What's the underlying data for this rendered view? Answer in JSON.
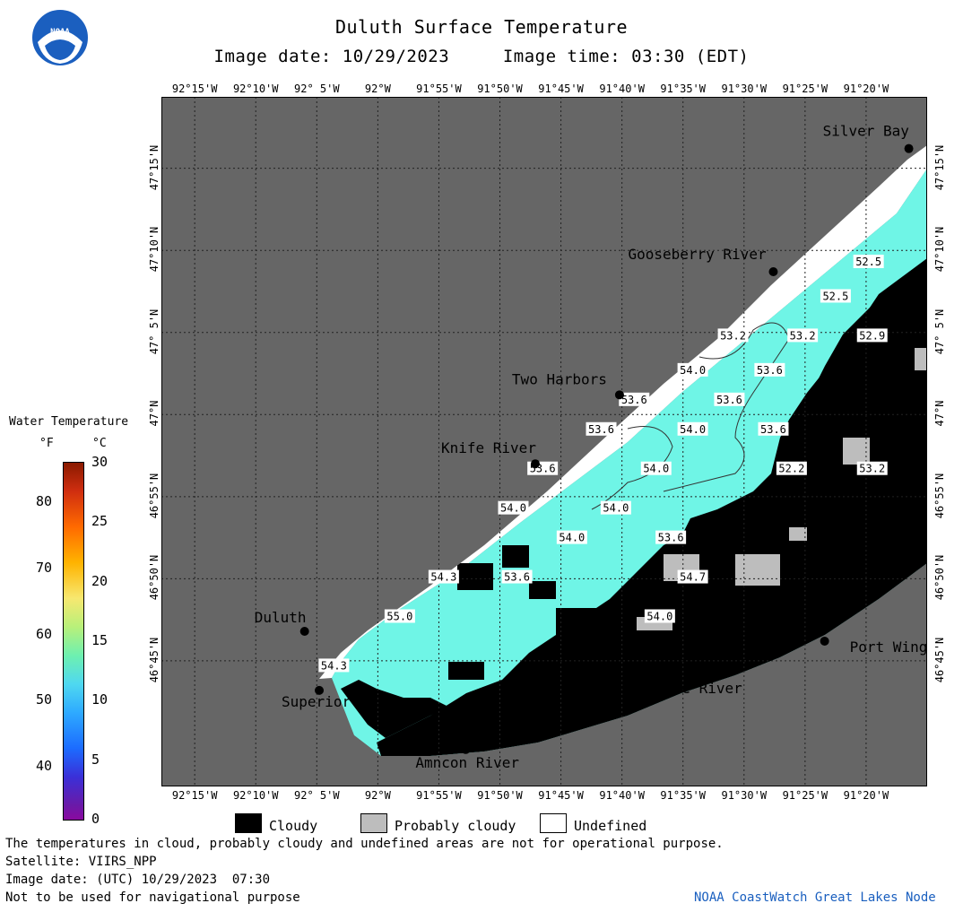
{
  "header": {
    "title": "Duluth Surface Temperature",
    "subtitle": "Image date: 10/29/2023     Image time: 03:30 (EDT)"
  },
  "logo": {
    "text": "NOAA"
  },
  "map": {
    "lon_labels": [
      "92°15'W",
      "92°10'W",
      "92° 5'W",
      "92°W",
      "91°55'W",
      "91°50'W",
      "91°45'W",
      "91°40'W",
      "91°35'W",
      "91°30'W",
      "91°25'W",
      "91°20'W"
    ],
    "lat_labels": [
      "47°15'N",
      "47°10'N",
      "47° 5'N",
      "47°N",
      "46°55'N",
      "46°50'N",
      "46°45'N"
    ],
    "places": [
      {
        "name": "Silver Bay",
        "lon": -91.275,
        "lat": 47.27
      },
      {
        "name": "Gooseberry River",
        "lon": -91.46,
        "lat": 47.145
      },
      {
        "name": "Two Harbors",
        "lon": -91.67,
        "lat": 47.02
      },
      {
        "name": "Knife River",
        "lon": -91.785,
        "lat": 46.95
      },
      {
        "name": "Duluth",
        "lon": -92.1,
        "lat": 46.78
      },
      {
        "name": "Superior",
        "lon": -92.08,
        "lat": 46.72
      },
      {
        "name": "Amncon River",
        "lon": -91.88,
        "lat": 46.66
      },
      {
        "name": "Brule River",
        "lon": -91.62,
        "lat": 46.74
      },
      {
        "name": "Port Wing",
        "lon": -91.39,
        "lat": 46.77
      }
    ],
    "temperature_labels": [
      {
        "value": "52.5",
        "lon": -91.33,
        "lat": 47.155
      },
      {
        "value": "52.5",
        "lon": -91.375,
        "lat": 47.12
      },
      {
        "value": "52.9",
        "lon": -91.325,
        "lat": 47.08
      },
      {
        "value": "53.2",
        "lon": -91.515,
        "lat": 47.08
      },
      {
        "value": "53.2",
        "lon": -91.42,
        "lat": 47.08
      },
      {
        "value": "54.0",
        "lon": -91.57,
        "lat": 47.045
      },
      {
        "value": "53.6",
        "lon": -91.465,
        "lat": 47.045
      },
      {
        "value": "53.6",
        "lon": -91.65,
        "lat": 47.015
      },
      {
        "value": "53.6",
        "lon": -91.52,
        "lat": 47.015
      },
      {
        "value": "53.6",
        "lon": -91.695,
        "lat": 46.985
      },
      {
        "value": "54.0",
        "lon": -91.57,
        "lat": 46.985
      },
      {
        "value": "53.6",
        "lon": -91.46,
        "lat": 46.985
      },
      {
        "value": "53.6",
        "lon": -91.775,
        "lat": 46.945
      },
      {
        "value": "54.0",
        "lon": -91.62,
        "lat": 46.945
      },
      {
        "value": "52.2",
        "lon": -91.435,
        "lat": 46.945
      },
      {
        "value": "53.2",
        "lon": -91.325,
        "lat": 46.945
      },
      {
        "value": "54.0",
        "lon": -91.815,
        "lat": 46.905
      },
      {
        "value": "54.0",
        "lon": -91.675,
        "lat": 46.905
      },
      {
        "value": "54.0",
        "lon": -91.735,
        "lat": 46.875
      },
      {
        "value": "53.6",
        "lon": -91.6,
        "lat": 46.875
      },
      {
        "value": "54.3",
        "lon": -91.91,
        "lat": 46.835
      },
      {
        "value": "53.6",
        "lon": -91.81,
        "lat": 46.835
      },
      {
        "value": "54.7",
        "lon": -91.57,
        "lat": 46.835
      },
      {
        "value": "55.0",
        "lon": -91.97,
        "lat": 46.795
      },
      {
        "value": "54.0",
        "lon": -91.615,
        "lat": 46.795
      },
      {
        "value": "54.3",
        "lon": -92.06,
        "lat": 46.745
      }
    ]
  },
  "colorbar": {
    "title": "Water Temperature",
    "unit_f": "°F",
    "unit_c": "°C",
    "f_ticks": [
      "80",
      "70",
      "60",
      "50",
      "40"
    ],
    "c_ticks": [
      "30",
      "25",
      "20",
      "15",
      "10",
      "5",
      "0"
    ]
  },
  "legend": {
    "cloudy": "Cloudy",
    "probably_cloudy": "Probably cloudy",
    "undefined": "Undefined",
    "colors": {
      "cloudy": "#000000",
      "probably_cloudy": "#bdbdbd",
      "undefined": "#ffffff",
      "land": "#666666",
      "water": "#6ff5e6"
    }
  },
  "footer": {
    "note": "The temperatures in cloud, probably cloudy and undefined areas are not for operational purpose.",
    "satellite": "Satellite: VIIRS_NPP",
    "utc_date": "Image date: (UTC) 10/29/2023  07:30",
    "nav_warning": "Not to be used for navigational purpose",
    "credit": "NOAA CoastWatch Great Lakes Node"
  }
}
